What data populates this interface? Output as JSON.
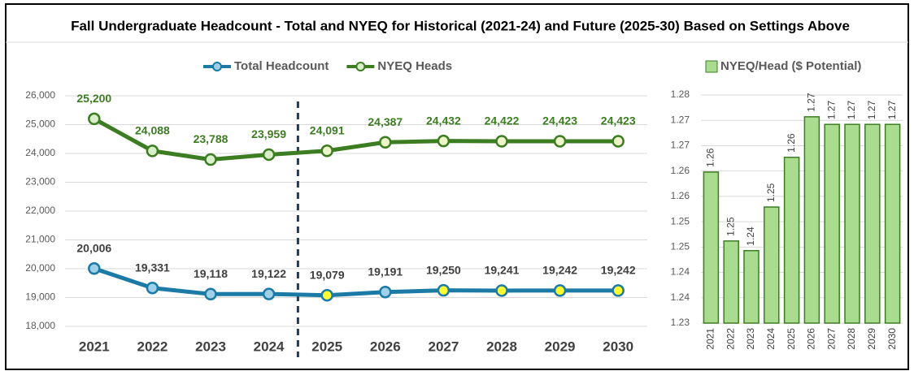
{
  "title": "Fall Undergraduate Headcount - Total and NYEQ for Historical (2021-24) and Future (2025-30) Based on Settings Above",
  "chart_data": [
    {
      "type": "line",
      "categories": [
        "2021",
        "2022",
        "2023",
        "2024",
        "2025",
        "2026",
        "2027",
        "2028",
        "2029",
        "2030"
      ],
      "series": [
        {
          "name": "Total Headcount",
          "color": "#1c7aa6",
          "label_color": "#404040",
          "marker_fills": [
            "#9fd0e8",
            "#9fd0e8",
            "#9fd0e8",
            "#9fd0e8",
            "#ffff33",
            "#9fd0e8",
            "#ffff33",
            "#ffff33",
            "#ffff33",
            "#ffff33"
          ],
          "values": [
            20006,
            19331,
            19118,
            19122,
            19079,
            19191,
            19250,
            19241,
            19242,
            19242
          ],
          "value_labels": [
            "20,006",
            "19,331",
            "19,118",
            "19,122",
            "19,079",
            "19,191",
            "19,250",
            "19,241",
            "19,242",
            "19,242"
          ]
        },
        {
          "name": "NYEQ Heads",
          "color": "#3c7d22",
          "label_color": "#3c7d22",
          "marker_fills": [
            "#d9efc9",
            "#d9efc9",
            "#d9efc9",
            "#d9efc9",
            "#eef5c8",
            "#eef5c8",
            "#eef5c8",
            "#eef5c8",
            "#eef5c8",
            "#eef5c8"
          ],
          "values": [
            25200,
            24088,
            23788,
            23959,
            24091,
            24387,
            24432,
            24422,
            24423,
            24423
          ],
          "value_labels": [
            "25,200",
            "24,088",
            "23,788",
            "23,959",
            "24,091",
            "24,387",
            "24,432",
            "24,422",
            "24,423",
            "24,423"
          ]
        }
      ],
      "ylim": [
        18000,
        26000
      ],
      "yticks": [
        {
          "value": 18000,
          "label": "18,000"
        },
        {
          "value": 19000,
          "label": "19,000"
        },
        {
          "value": 20000,
          "label": "20,000"
        },
        {
          "value": 21000,
          "label": "21,000"
        },
        {
          "value": 22000,
          "label": "22,000"
        },
        {
          "value": 23000,
          "label": "23,000"
        },
        {
          "value": 24000,
          "label": "24,000"
        },
        {
          "value": 25000,
          "label": "25,000"
        },
        {
          "value": 26000,
          "label": "26,000"
        }
      ],
      "grid": true,
      "legend": "top"
    },
    {
      "type": "bar",
      "categories": [
        "2021",
        "2022",
        "2023",
        "2024",
        "2025",
        "2026",
        "2027",
        "2028",
        "2029",
        "2030"
      ],
      "series": [
        {
          "name": "NYEQ/Head ($ Potential)",
          "color": "#a9dc8e",
          "edge_color": "#3c7d22",
          "values": [
            1.2598,
            1.2462,
            1.2443,
            1.2529,
            1.2627,
            1.2707,
            1.2692,
            1.2692,
            1.2692,
            1.2692
          ],
          "value_labels": [
            "1.26",
            "1.25",
            "1.24",
            "1.25",
            "1.26",
            "1.27",
            "1.27",
            "1.27",
            "1.27",
            "1.27"
          ]
        }
      ],
      "ylim": [
        1.23,
        1.275
      ],
      "yticks": [
        1.23,
        {
          "value": 1.235,
          "label": "1.24"
        },
        1.24,
        {
          "value": 1.245,
          "label": "1.25"
        },
        1.25,
        {
          "value": 1.255,
          "label": "1.26"
        },
        1.26,
        {
          "value": 1.265,
          "label": "1.27"
        },
        1.27,
        {
          "value": 1.275,
          "label": "1.28"
        }
      ],
      "grid": true,
      "legend": "top"
    }
  ]
}
